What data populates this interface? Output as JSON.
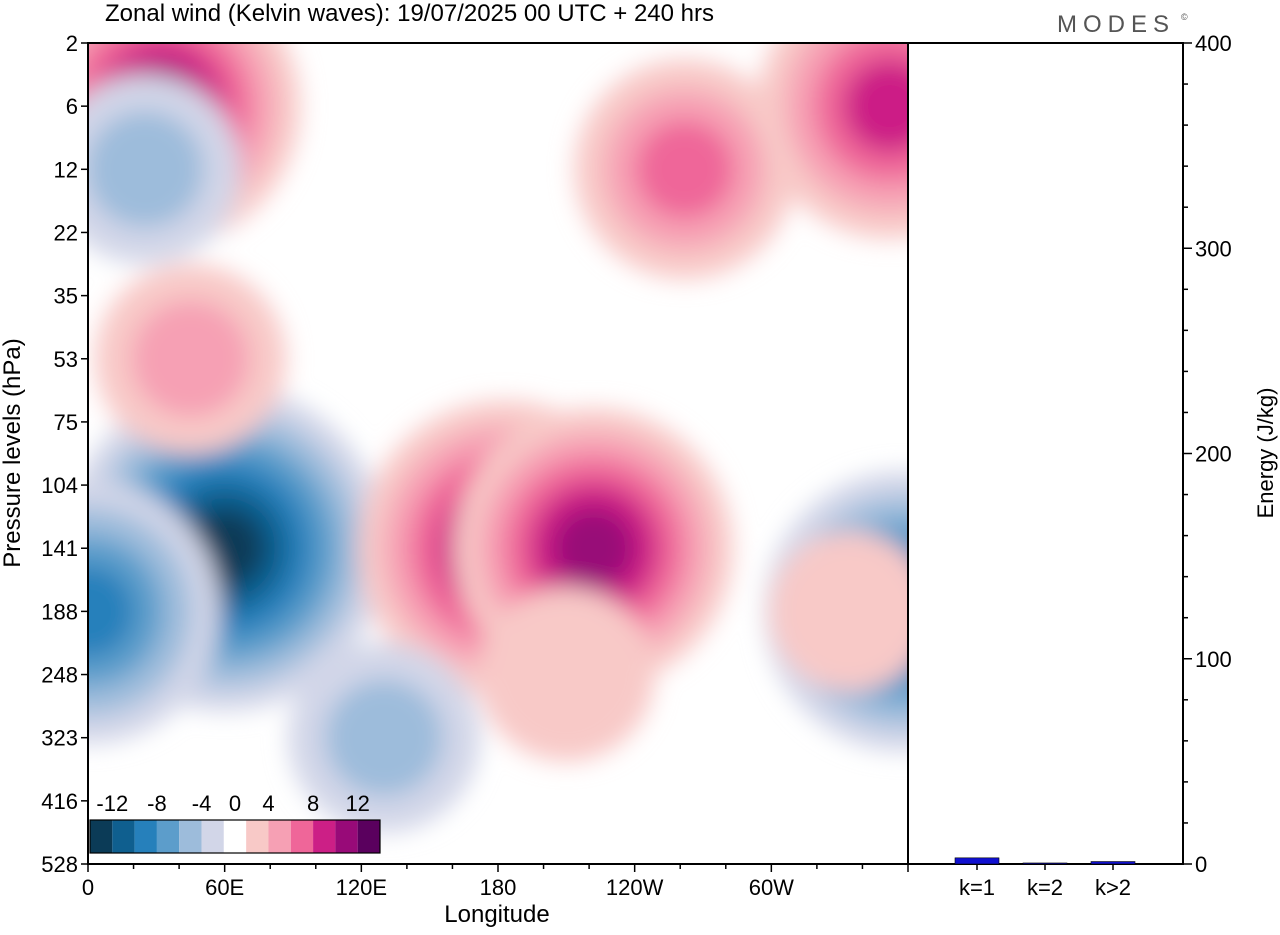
{
  "header": {
    "title": "Zonal wind (Kelvin waves):  19/07/2025  00 UTC  + 240 hrs",
    "logo_text": "MODES",
    "logo_mark": "©"
  },
  "chart_data": [
    {
      "type": "heatmap",
      "title": "Zonal wind (Kelvin waves):  19/07/2025  00 UTC  + 240 hrs",
      "xlabel": "Longitude",
      "ylabel": "Pressure levels (hPa)",
      "x_ticks": [
        "0",
        "60E",
        "120E",
        "180",
        "120W",
        "60W"
      ],
      "x_tick_degrees": [
        0,
        60,
        120,
        180,
        240,
        300
      ],
      "xlim": [
        0,
        360
      ],
      "y_ticks": [
        "2",
        "6",
        "12",
        "22",
        "35",
        "53",
        "75",
        "104",
        "141",
        "188",
        "248",
        "323",
        "416",
        "528"
      ],
      "color_scale": {
        "labels": [
          "-12",
          "-8",
          "-4",
          "0",
          "4",
          "8",
          "12"
        ],
        "levels": [
          -14,
          -12,
          -10,
          -8,
          -6,
          -4,
          -2,
          2,
          4,
          6,
          8,
          10,
          12,
          14
        ],
        "colors": [
          "#0b3b57",
          "#0f5f8f",
          "#2680bb",
          "#5c9dcb",
          "#9dbcdb",
          "#d2d6e8",
          "#ffffff",
          "#f8c9c7",
          "#f6a0b4",
          "#ef6699",
          "#cc1f86",
          "#980a78",
          "#5a005e"
        ]
      },
      "features": [
        {
          "lon": 32,
          "level": "6",
          "value": 11
        },
        {
          "lon": 25,
          "level": "12",
          "value": -5
        },
        {
          "lon": 352,
          "level": "6",
          "value": 10
        },
        {
          "lon": 262,
          "level": "12",
          "value": 7
        },
        {
          "lon": 60,
          "level": "141",
          "value": -14
        },
        {
          "lon": 0,
          "level": "188",
          "value": -10
        },
        {
          "lon": 358,
          "level": "188",
          "value": -11
        },
        {
          "lon": 183,
          "level": "141",
          "value": 12
        },
        {
          "lon": 222,
          "level": "141",
          "value": 11
        },
        {
          "lon": 45,
          "level": "53",
          "value": 5
        },
        {
          "lon": 335,
          "level": "188",
          "value": 3
        },
        {
          "lon": 210,
          "level": "248",
          "value": 4
        },
        {
          "lon": 130,
          "level": "323",
          "value": -5
        }
      ]
    },
    {
      "type": "bar",
      "categories": [
        "k=1",
        "k=2",
        "k>2"
      ],
      "values": [
        3,
        0.5,
        1.2
      ],
      "ylabel": "Energy (J/kg)",
      "ylim": [
        0,
        400
      ],
      "y_ticks": [
        0,
        100,
        200,
        300,
        400
      ],
      "bar_color": "#1010d0"
    }
  ]
}
